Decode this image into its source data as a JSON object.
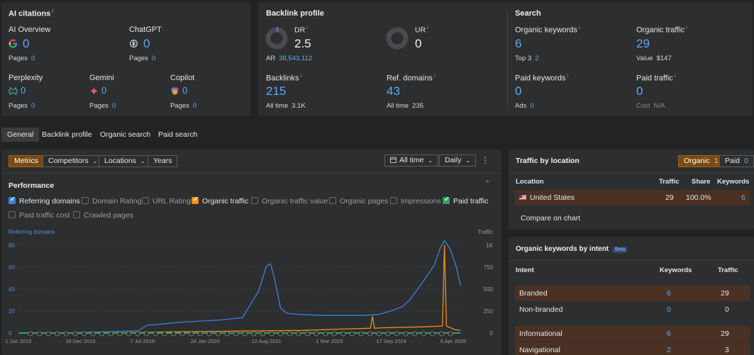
{
  "ai_citations": {
    "title": "AI citations",
    "items": [
      {
        "name": "AI Overview",
        "value": "0",
        "pages_label": "Pages",
        "pages": "0",
        "icon": "google-icon"
      },
      {
        "name": "ChatGPT",
        "value": "0",
        "pages_label": "Pages",
        "pages": "0",
        "icon": "chatgpt-icon"
      },
      {
        "name": "Perplexity",
        "value": "0",
        "pages_label": "Pages",
        "pages": "0",
        "icon": "perplexity-icon"
      },
      {
        "name": "Gemini",
        "value": "0",
        "pages_label": "Pages",
        "pages": "0",
        "icon": "gemini-icon"
      },
      {
        "name": "Copilot",
        "value": "0",
        "pages_label": "Pages",
        "pages": "0",
        "icon": "copilot-icon"
      }
    ]
  },
  "backlink_profile": {
    "title": "Backlink profile",
    "dr_label": "DR",
    "dr_value": "2.5",
    "ar_label": "AR",
    "ar_value": "38,543,112",
    "ur_label": "UR",
    "ur_value": "0",
    "backlinks_label": "Backlinks",
    "backlinks_value": "215",
    "backlinks_all_label": "All time",
    "backlinks_all_value": "3.1K",
    "refdomains_label": "Ref. domains",
    "refdomains_value": "43",
    "refdomains_all_label": "All time",
    "refdomains_all_value": "235"
  },
  "search": {
    "title": "Search",
    "organic_keywords_label": "Organic keywords",
    "organic_keywords_value": "6",
    "top3_label": "Top 3",
    "top3_value": "2",
    "organic_traffic_label": "Organic traffic",
    "organic_traffic_value": "29",
    "value_label": "Value",
    "value_value": "$147",
    "paid_keywords_label": "Paid keywords",
    "paid_keywords_value": "0",
    "ads_label": "Ads",
    "ads_value": "0",
    "paid_traffic_label": "Paid traffic",
    "paid_traffic_value": "0",
    "cost_label": "Cost",
    "cost_value": "N/A"
  },
  "tabs": [
    "General",
    "Backlink profile",
    "Organic search",
    "Paid search"
  ],
  "toolbar": {
    "metrics": "Metrics",
    "competitors": "Competitors",
    "locations": "Locations",
    "years": "Years",
    "all_time": "All time",
    "daily": "Daily"
  },
  "performance": {
    "title": "Performance",
    "checkboxes": [
      {
        "label": "Referring domains",
        "checked": true,
        "color": "#3b82d6"
      },
      {
        "label": "Domain Rating",
        "checked": false
      },
      {
        "label": "URL Rating",
        "checked": false
      },
      {
        "label": "Organic traffic",
        "checked": true,
        "color": "#f0901c"
      },
      {
        "label": "Organic traffic value",
        "checked": false
      },
      {
        "label": "Organic pages",
        "checked": false
      },
      {
        "label": "Impressions",
        "checked": false
      },
      {
        "label": "Paid traffic",
        "checked": true,
        "color": "#2fa35a"
      },
      {
        "label": "Paid traffic cost",
        "checked": false
      },
      {
        "label": "Crawled pages",
        "checked": false
      }
    ]
  },
  "chart_data": {
    "type": "line",
    "left_axis_label": "Referring domains",
    "right_axis_label": "Traffic",
    "left_ticks": [
      "80",
      "60",
      "40",
      "20",
      "0"
    ],
    "right_ticks": [
      "1K",
      "750",
      "500",
      "250",
      "0"
    ],
    "x_ticks": [
      "1 Jun 2015",
      "18 Dec 2016",
      "7 Jul 2018",
      "24 Jan 2020",
      "12 Aug 2021",
      "1 Mar 2023",
      "17 Sep 2024",
      "6 Apr 2026"
    ],
    "ylim_left": [
      0,
      80
    ],
    "ylim_right": [
      0,
      1000
    ],
    "series": [
      {
        "name": "Referring domains",
        "color": "#3b82d6",
        "x": [
          2015.4,
          2016.5,
          2017.5,
          2018.4,
          2018.6,
          2019.5,
          2020.5,
          2021.0,
          2021.4,
          2021.6,
          2021.7,
          2021.8,
          2021.95,
          2022.1,
          2022.4,
          2023.0,
          2023.5,
          2024.0,
          2024.4,
          2024.7,
          2025.0,
          2025.2,
          2025.5,
          2025.8,
          2025.95,
          2026.05,
          2026.2,
          2026.35,
          2026.45
        ],
        "values": [
          0,
          0,
          1,
          2,
          7,
          10,
          12,
          14,
          38,
          61,
          63,
          50,
          23,
          18,
          17,
          16,
          16,
          16,
          17,
          20,
          24,
          31,
          46,
          62,
          78,
          84,
          76,
          60,
          43
        ]
      },
      {
        "name": "Organic traffic",
        "color": "#f0901c",
        "x": [
          2015.4,
          2017.0,
          2018.4,
          2019.5,
          2020.5,
          2021.5,
          2022.5,
          2023.5,
          2024.2,
          2024.25,
          2024.3,
          2024.5,
          2025.5,
          2026.0,
          2026.05,
          2026.1,
          2026.3,
          2026.45
        ],
        "values": [
          0,
          0,
          5,
          15,
          20,
          25,
          30,
          45,
          55,
          190,
          55,
          60,
          70,
          80,
          1000,
          80,
          40,
          29
        ]
      },
      {
        "name": "Paid traffic",
        "color": "#2fa35a",
        "x": [
          2015.4,
          2026.45
        ],
        "values": [
          0,
          0
        ]
      }
    ]
  },
  "traffic_by_location": {
    "title": "Traffic by location",
    "toggle_organic": "Organic",
    "toggle_organic_count": "1",
    "toggle_paid": "Paid",
    "toggle_paid_count": "0",
    "headers": [
      "Location",
      "Traffic",
      "Share",
      "Keywords"
    ],
    "rows": [
      {
        "flag": "us-flag-icon",
        "location": "United States",
        "traffic": "29",
        "share": "100.0%",
        "keywords": "6"
      }
    ],
    "compare": "Compare on chart"
  },
  "keywords_by_intent": {
    "title": "Organic keywords by intent",
    "badge": "Beta",
    "headers": [
      "Intent",
      "Keywords",
      "Traffic"
    ],
    "rows": [
      {
        "intent": "Branded",
        "keywords": "6",
        "traffic": "29",
        "highlight": true
      },
      {
        "intent": "Non-branded",
        "keywords": "0",
        "traffic": "0",
        "highlight": false
      },
      {
        "intent": "Informational",
        "keywords": "6",
        "traffic": "29",
        "highlight": true
      },
      {
        "intent": "Navigational",
        "keywords": "2",
        "traffic": "3",
        "highlight": true
      }
    ]
  }
}
